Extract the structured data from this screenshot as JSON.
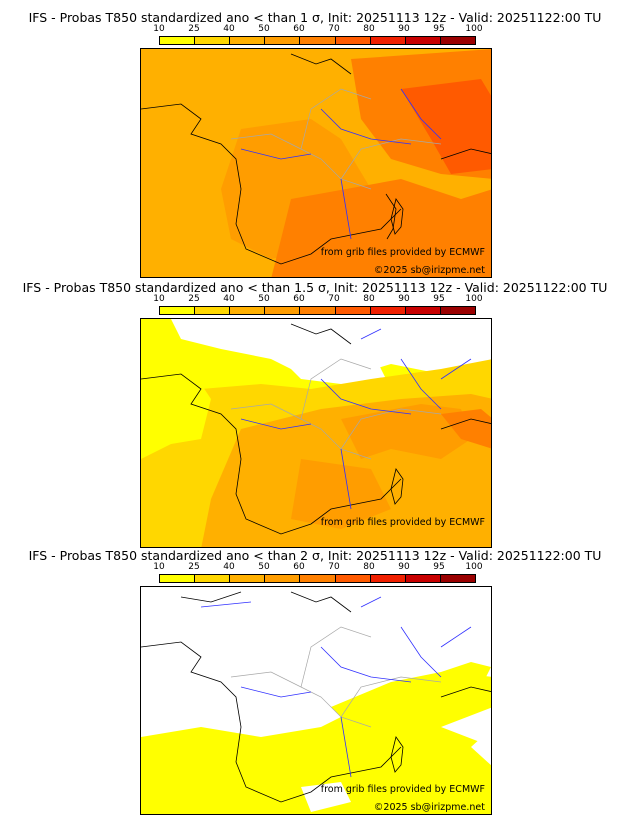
{
  "panels": [
    {
      "title": "IFS - Probas T850  standardized ano < than 1 σ, Init: 20251113 12z - Valid: 20251122:00 TU",
      "credit_source": "from grib files provided by ECMWF",
      "credit_copyright": "©2025 sb@irizpme.net",
      "threshold_sigma": 1
    },
    {
      "title": "IFS - Probas T850  standardized ano < than 1.5 σ, Init: 20251113 12z - Valid: 20251122:00 TU",
      "credit_source": "from grib files provided by ECMWF",
      "credit_copyright": "",
      "threshold_sigma": 1.5
    },
    {
      "title": "IFS - Probas T850  standardized ano < than 2 σ, Init: 20251113 12z - Valid: 20251122:00 TU",
      "credit_source": "from grib files provided by ECMWF",
      "credit_copyright": "©2025 sb@irizpme.net",
      "threshold_sigma": 2
    }
  ],
  "colorbar": {
    "labels": [
      "10",
      "25",
      "40",
      "50",
      "60",
      "70",
      "80",
      "90",
      "95",
      "100"
    ],
    "colors": [
      "#ffff00",
      "#ffd700",
      "#ffb000",
      "#ff9d00",
      "#ff8000",
      "#ff5a00",
      "#f02000",
      "#c80000",
      "#9a0000",
      "#5a0000"
    ]
  },
  "colors": {
    "coast": "#000000",
    "river": "#3030ff",
    "border": "#a8a8a8",
    "nodata": "#ffffff"
  }
}
